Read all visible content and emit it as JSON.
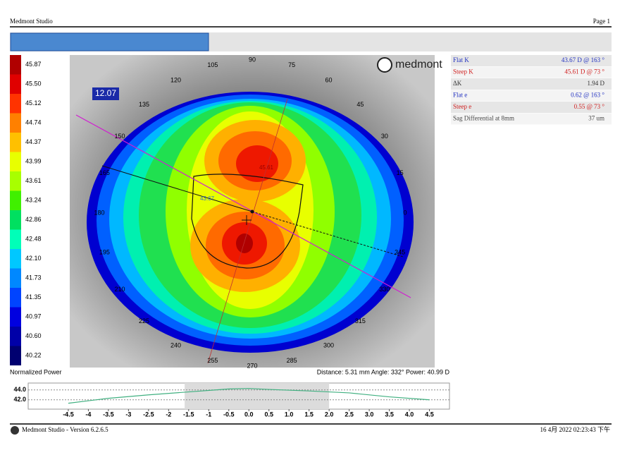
{
  "header": {
    "app": "Medmont Studio",
    "page": "Page 1"
  },
  "scale": {
    "values": [
      "45.87",
      "45.50",
      "45.12",
      "44.74",
      "44.37",
      "43.99",
      "43.61",
      "43.24",
      "42.86",
      "42.48",
      "42.10",
      "41.73",
      "41.35",
      "40.97",
      "40.60",
      "40.22"
    ],
    "colors": [
      "#b00000",
      "#e00000",
      "#ff3300",
      "#ff8000",
      "#ffc000",
      "#e8ff00",
      "#a8ff00",
      "#40f000",
      "#00e060",
      "#00ffb8",
      "#00c8ff",
      "#0088ff",
      "#0044ff",
      "#0000e0",
      "#0000a8",
      "#000070"
    ]
  },
  "map": {
    "logo": "medmont",
    "meridian_label": "12.07",
    "flat_label": "43.67",
    "steep_label": "45.61",
    "angles": [
      90,
      75,
      60,
      45,
      30,
      15,
      0,
      345,
      330,
      315,
      300,
      285,
      270,
      255,
      240,
      225,
      210,
      195,
      180,
      165,
      150,
      135,
      120,
      105
    ]
  },
  "info": {
    "rows": [
      {
        "label": "Flat K",
        "value": "43.67 D @ 163 °",
        "color": "#2030c0"
      },
      {
        "label": "Steep K",
        "value": "45.61 D @ 73 °",
        "color": "#d02020"
      },
      {
        "label": "ΔK",
        "value": "1.94 D",
        "color": "#333333"
      },
      {
        "label": "Flat e",
        "value": "0.62 @ 163 °",
        "color": "#2030c0"
      },
      {
        "label": "Steep e",
        "value": "0.55 @ 73 °",
        "color": "#d02020"
      },
      {
        "label": "Sag Differential at 8mm",
        "value": "37 um",
        "color": "#444444"
      }
    ]
  },
  "profile": {
    "title": "Normalized Power",
    "readout": "Distance: 5.31 mm Angle: 332° Power: 40.99 D",
    "x": [
      -4.5,
      -3.5,
      -2.5,
      -1.5,
      -0.5,
      0,
      0.5,
      1.5,
      2.5,
      3.5,
      4.5
    ],
    "values": [
      41.3,
      42.3,
      43.0,
      43.6,
      44.2,
      44.3,
      44.1,
      43.8,
      43.4,
      42.6,
      42.0
    ],
    "xlim": [
      -5.5,
      5.0
    ],
    "ylim": [
      40.1,
      45.4
    ],
    "xticks": [
      -4.5,
      -4.0,
      -3.5,
      -3.0,
      -2.5,
      -2.0,
      -1.5,
      -1.0,
      -0.5,
      {
        "value": 0,
        "label": "0.0"
      },
      0.5,
      {
        "value": 1,
        "label": "1.0"
      },
      1.5,
      {
        "value": 2,
        "label": "2.0"
      },
      2.5,
      {
        "value": 3,
        "label": "3.0"
      },
      3.5,
      {
        "value": 4,
        "label": "4.0"
      },
      4.5
    ],
    "yticks": [
      {
        "value": 44,
        "label": "44.0"
      },
      {
        "value": 42,
        "label": "42.0"
      }
    ]
  },
  "footer": {
    "version": "Medmont Studio - Version 6.2.6.5",
    "timestamp": "16 4月 2022 02:23:43 下午"
  }
}
